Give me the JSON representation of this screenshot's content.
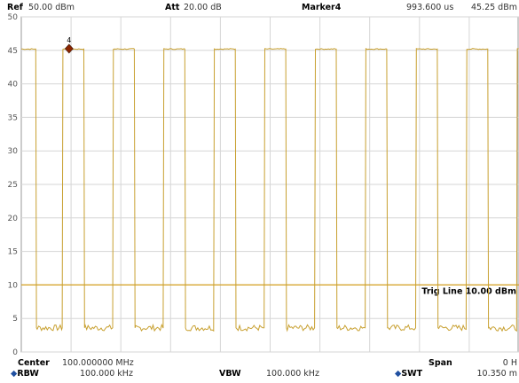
{
  "header": {
    "ref_label": "Ref",
    "ref_value": "50.00 dBm",
    "att_label": "Att",
    "att_value": "20.00 dB",
    "marker_label": "Marker4",
    "marker_time": "993.600 us",
    "marker_level": "45.25 dBm"
  },
  "footer": {
    "center_label": "Center",
    "center_value": "100.000000 MHz",
    "rbw_label": "RBW",
    "rbw_value": "100.000 kHz",
    "vbw_label": "VBW",
    "vbw_value": "100.000 kHz",
    "span_label": "Span",
    "span_value": "0 H",
    "swt_label": "SWT",
    "swt_value": "10.350 m"
  },
  "colors": {
    "trace": "#c8a030",
    "trigline": "#d4a020",
    "grid": "#d6d6d6",
    "marker": "#8b2500"
  },
  "chart_data": {
    "type": "line",
    "ylim": [
      0,
      50
    ],
    "yticks": [
      "0",
      "5",
      "10",
      "15",
      "20",
      "25",
      "30",
      "35",
      "40",
      "45",
      "50"
    ],
    "trace_high_dbm": 45.2,
    "trace_low_dbm": 3.6,
    "pulses": [
      {
        "rise": 0.3,
        "fall": 0.85
      },
      {
        "rise": 1.3,
        "fall": 1.9
      },
      {
        "rise": 2.35,
        "fall": 2.95
      },
      {
        "rise": 3.4,
        "fall": 4.0
      },
      {
        "rise": 4.45,
        "fall": 5.05
      },
      {
        "rise": 5.5,
        "fall": 6.1
      },
      {
        "rise": 6.55,
        "fall": 7.15
      },
      {
        "rise": 7.6,
        "fall": 8.2
      },
      {
        "rise": 8.65,
        "fall": 9.25
      },
      {
        "rise": 9.7,
        "fall": 10.3
      }
    ],
    "x_range_ms": [
      0,
      10.35
    ],
    "trig_line_dbm": 10.0,
    "trig_label": "Trig Line 10.00 dBm",
    "marker": {
      "label": "4",
      "x_ms": 0.9936,
      "y_dbm": 45.25
    }
  }
}
